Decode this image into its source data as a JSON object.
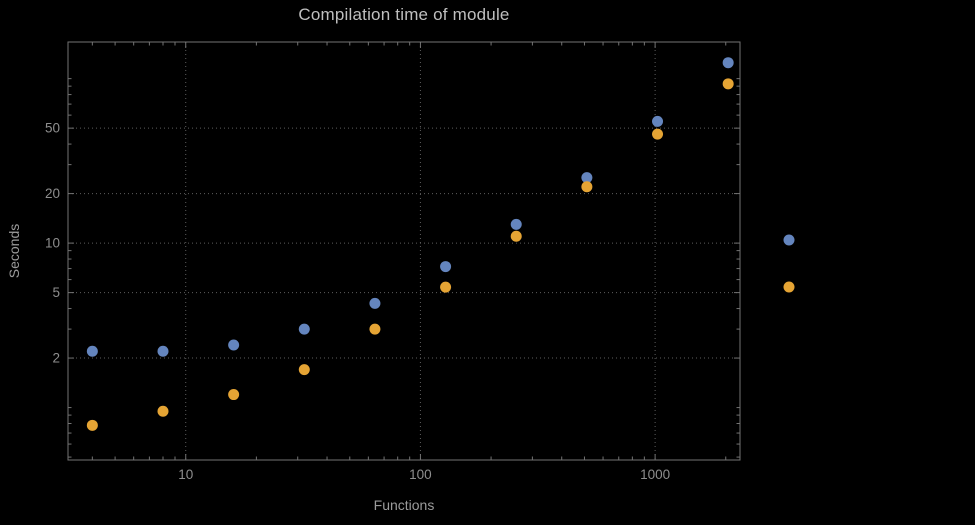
{
  "chart_data": {
    "type": "scatter",
    "title": "Compilation time of module",
    "xlabel": "Functions",
    "ylabel": "Seconds",
    "xscale": "log",
    "yscale": "log",
    "xlim": [
      3.15,
      2300
    ],
    "ylim": [
      0.48,
      167
    ],
    "xticks": [
      10,
      100,
      1000
    ],
    "yticks": [
      2,
      5,
      10,
      20,
      50
    ],
    "grid": true,
    "x": [
      4,
      8,
      16,
      32,
      64,
      128,
      256,
      512,
      1024,
      2048
    ],
    "series": [
      {
        "name": "series-1",
        "color": "#6485BE",
        "values": [
          2.2,
          2.2,
          2.4,
          3.0,
          4.3,
          7.2,
          13,
          25,
          55,
          125
        ]
      },
      {
        "name": "series-2",
        "color": "#E5A434",
        "values": [
          0.78,
          0.95,
          1.2,
          1.7,
          3.0,
          5.4,
          11,
          22,
          46,
          93
        ]
      }
    ],
    "legend": {
      "position": "right",
      "labels_visible": false,
      "entries": [
        {
          "series": "series-1",
          "color": "#6485BE"
        },
        {
          "series": "series-2",
          "color": "#E5A434"
        }
      ]
    }
  },
  "colors": {
    "background": "#000000",
    "frame": "#737373",
    "grid": "#5E5E5E",
    "tick_text": "#8E8E8E",
    "label_text": "#9B9B9B",
    "title_text": "#BFBFBF"
  }
}
